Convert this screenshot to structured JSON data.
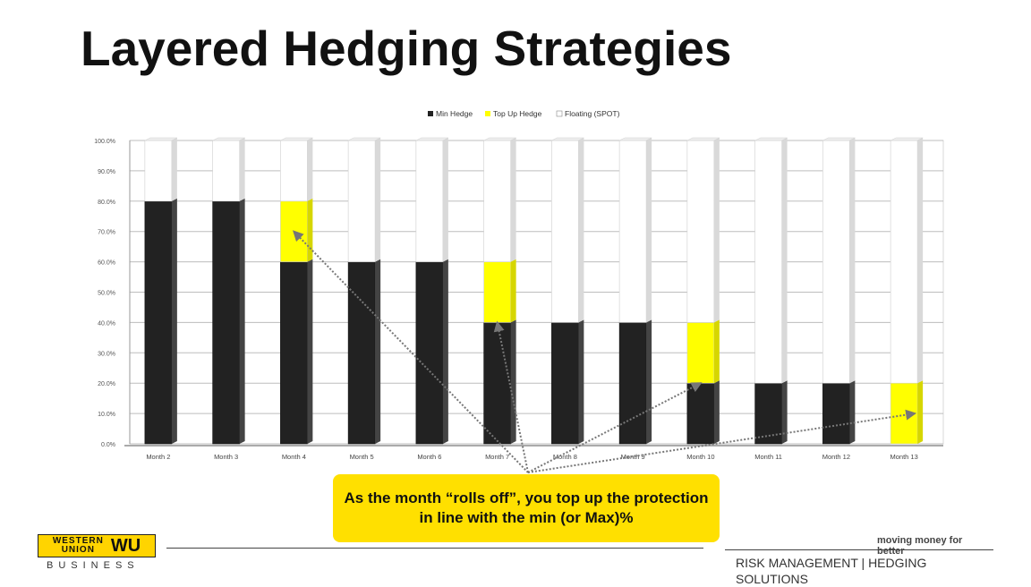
{
  "page": {
    "title": "Layered Hedging Strategies",
    "callout": "As the month “rolls off”, you top up the protection in line with the min (or Max)%",
    "logo_line1": "WESTERN",
    "logo_line2": "UNION",
    "logo_mark": "WU",
    "logo_sub": "BUSINESS",
    "tagline": "moving money for better",
    "section": "RISK MANAGEMENT | HEDGING SOLUTIONS"
  },
  "colors": {
    "min_hedge": "#222222",
    "top_up_hedge": "#ffff00",
    "floating": "#ffffff",
    "callout_bg": "#ffe000",
    "arrow": "#777777"
  },
  "chart_data": {
    "type": "bar",
    "stacked": true,
    "categories": [
      "Month 2",
      "Month 3",
      "Month 4",
      "Month 5",
      "Month 6",
      "Month 7",
      "Month 8",
      "Month 9",
      "Month 10",
      "Month 11",
      "Month 12",
      "Month 13"
    ],
    "series": [
      {
        "name": "Min Hedge",
        "values": [
          80,
          80,
          60,
          60,
          60,
          40,
          40,
          40,
          20,
          20,
          20,
          0
        ]
      },
      {
        "name": "Top Up Hedge",
        "values": [
          0,
          0,
          20,
          0,
          0,
          20,
          0,
          0,
          20,
          0,
          0,
          20
        ]
      },
      {
        "name": "Floating (SPOT)",
        "values": [
          20,
          20,
          20,
          40,
          40,
          40,
          60,
          60,
          60,
          80,
          80,
          80
        ]
      }
    ],
    "y_ticks": [
      "0.0%",
      "10.0%",
      "20.0%",
      "30.0%",
      "40.0%",
      "50.0%",
      "60.0%",
      "70.0%",
      "80.0%",
      "90.0%",
      "100.0%"
    ],
    "ylim": [
      0,
      100
    ],
    "grid": true,
    "legend": "top",
    "title": "",
    "xlabel": "",
    "ylabel": ""
  }
}
